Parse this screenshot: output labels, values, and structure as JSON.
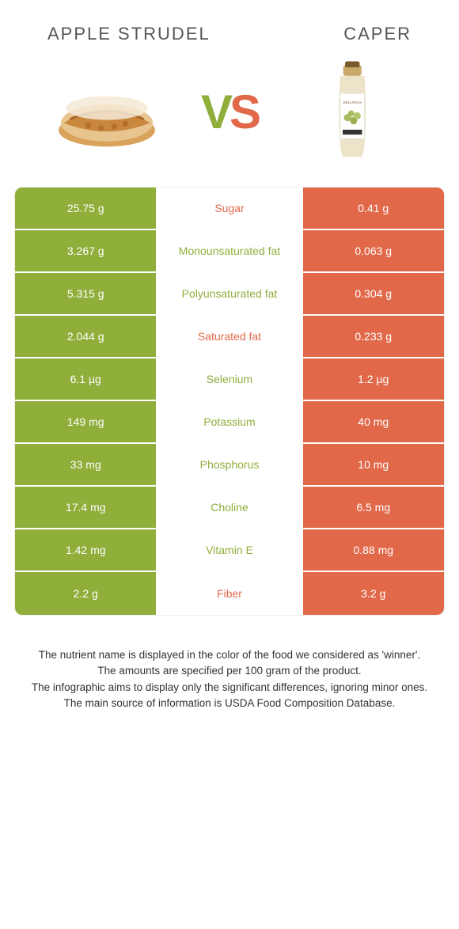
{
  "header": {
    "left_title": "Apple strudel",
    "right_title": "Caper",
    "vs_v": "V",
    "vs_s": "S"
  },
  "colors": {
    "green": "#8fae3a",
    "orange": "#e1694a",
    "bg": "#ffffff",
    "text": "#333333"
  },
  "table": {
    "rows": [
      {
        "left": "25.75 g",
        "label": "Sugar",
        "winner": "orange",
        "right": "0.41 g"
      },
      {
        "left": "3.267 g",
        "label": "Monounsaturated fat",
        "winner": "green",
        "right": "0.063 g"
      },
      {
        "left": "5.315 g",
        "label": "Polyunsaturated fat",
        "winner": "green",
        "right": "0.304 g"
      },
      {
        "left": "2.044 g",
        "label": "Saturated fat",
        "winner": "orange",
        "right": "0.233 g"
      },
      {
        "left": "6.1 µg",
        "label": "Selenium",
        "winner": "green",
        "right": "1.2 µg"
      },
      {
        "left": "149 mg",
        "label": "Potassium",
        "winner": "green",
        "right": "40 mg"
      },
      {
        "left": "33 mg",
        "label": "Phosphorus",
        "winner": "green",
        "right": "10 mg"
      },
      {
        "left": "17.4 mg",
        "label": "Choline",
        "winner": "green",
        "right": "6.5 mg"
      },
      {
        "left": "1.42 mg",
        "label": "Vitamin E",
        "winner": "green",
        "right": "0.88 mg"
      },
      {
        "left": "2.2 g",
        "label": "Fiber",
        "winner": "orange",
        "right": "3.2 g"
      }
    ]
  },
  "footer": {
    "line1": "The nutrient name is displayed in the color of the food we considered as 'winner'.",
    "line2": "The amounts are specified per 100 gram of the product.",
    "line3": "The infographic aims to display only the significant differences, ignoring minor ones.",
    "line4": "The main source of information is USDA Food Composition Database."
  }
}
